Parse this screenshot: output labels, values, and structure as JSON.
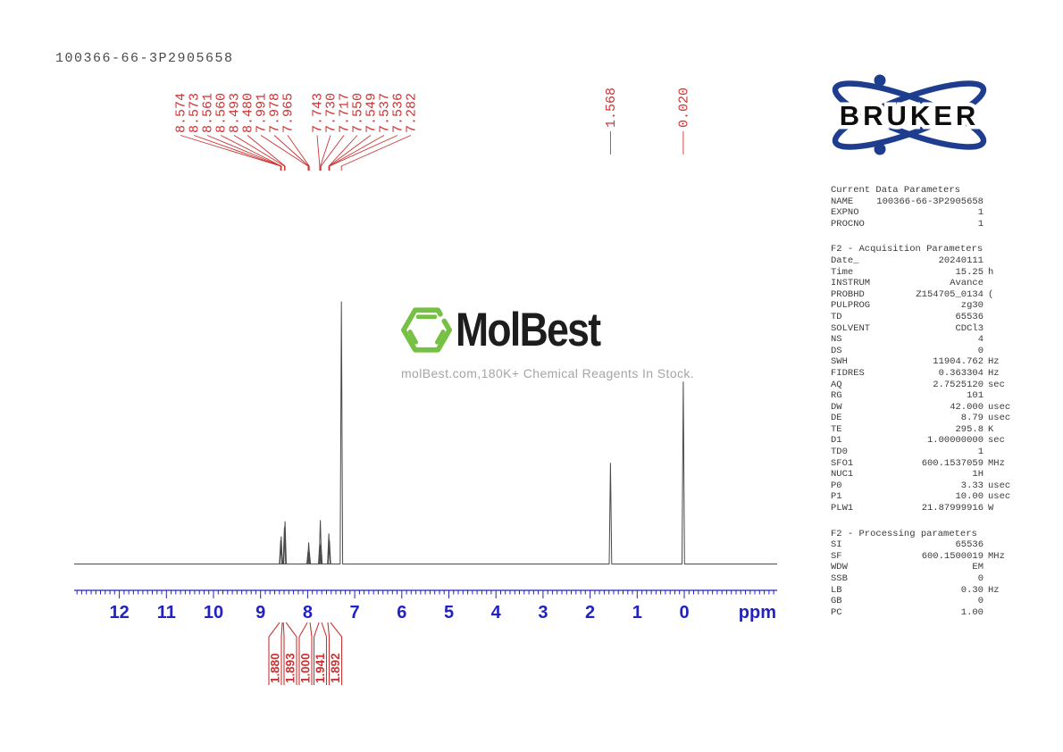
{
  "title": "100366-66-3P2905658",
  "colors": {
    "red": "#cc3434",
    "blue": "#2222c2",
    "navy": "#1e3d8f",
    "green": "#76c043",
    "trace_gray": "#4a4a4a"
  },
  "bruker_logo": {
    "text": "BRUKER"
  },
  "watermark": {
    "name": "MolBest",
    "tagline": "molBest.com,180K+ Chemical Reagents In Stock."
  },
  "chart_data": {
    "type": "line",
    "kind": "1H NMR spectrum",
    "xlabel": "ppm",
    "x_axis_reversed": true,
    "x_range_ppm": [
      12.96,
      -1.95
    ],
    "x_ticks": [
      12,
      11,
      10,
      9,
      8,
      7,
      6,
      5,
      4,
      3,
      2,
      1,
      0
    ],
    "grid": false,
    "peak_labels": [
      "8.574",
      "8.573",
      "8.561",
      "8.560",
      "8.493",
      "8.480",
      "7.991",
      "7.978",
      "7.965",
      "7.743",
      "7.730",
      "7.717",
      "7.550",
      "7.549",
      "7.537",
      "7.536",
      "7.282"
    ],
    "isolated_peak_labels": [
      "1.568",
      "0.020"
    ],
    "peaks": [
      {
        "ppm": 8.574,
        "rel": 0.09
      },
      {
        "ppm": 8.561,
        "rel": 0.105
      },
      {
        "ppm": 8.493,
        "rel": 0.14
      },
      {
        "ppm": 8.48,
        "rel": 0.163
      },
      {
        "ppm": 7.991,
        "rel": 0.05
      },
      {
        "ppm": 7.978,
        "rel": 0.082
      },
      {
        "ppm": 7.965,
        "rel": 0.05
      },
      {
        "ppm": 7.743,
        "rel": 0.08
      },
      {
        "ppm": 7.73,
        "rel": 0.167
      },
      {
        "ppm": 7.717,
        "rel": 0.08
      },
      {
        "ppm": 7.55,
        "rel": 0.116
      },
      {
        "ppm": 7.537,
        "rel": 0.09
      },
      {
        "ppm": 7.282,
        "rel": 1.0
      },
      {
        "ppm": 1.568,
        "rel": 0.385
      },
      {
        "ppm": 0.02,
        "rel": 0.695
      }
    ],
    "integrals": [
      {
        "value": "1.880",
        "ppm": 8.567
      },
      {
        "value": "1.893",
        "ppm": 8.487
      },
      {
        "value": "1.000",
        "ppm": 7.978
      },
      {
        "value": "1.941",
        "ppm": 7.73
      },
      {
        "value": "1.892",
        "ppm": 7.543
      }
    ]
  },
  "parameters": {
    "sections": [
      {
        "heading": "Current Data Parameters",
        "rows": [
          [
            "NAME",
            "100366-66-3P2905658",
            ""
          ],
          [
            "EXPNO",
            "1",
            ""
          ],
          [
            "PROCNO",
            "1",
            ""
          ]
        ]
      },
      {
        "heading": "F2 - Acquisition Parameters",
        "rows": [
          [
            "Date_",
            "20240111",
            ""
          ],
          [
            "Time",
            "15.25",
            "h"
          ],
          [
            "INSTRUM",
            "Avance",
            ""
          ],
          [
            "PROBHD",
            "Z154705_0134",
            "("
          ],
          [
            "PULPROG",
            "zg30",
            ""
          ],
          [
            "TD",
            "65536",
            ""
          ],
          [
            "SOLVENT",
            "CDCl3",
            ""
          ],
          [
            "NS",
            "4",
            ""
          ],
          [
            "DS",
            "0",
            ""
          ],
          [
            "SWH",
            "11904.762",
            "Hz"
          ],
          [
            "FIDRES",
            "0.363304",
            "Hz"
          ],
          [
            "AQ",
            "2.7525120",
            "sec"
          ],
          [
            "RG",
            "101",
            ""
          ],
          [
            "DW",
            "42.000",
            "usec"
          ],
          [
            "DE",
            "8.79",
            "usec"
          ],
          [
            "TE",
            "295.8",
            "K"
          ],
          [
            "D1",
            "1.00000000",
            "sec"
          ],
          [
            "TD0",
            "1",
            ""
          ],
          [
            "SFO1",
            "600.1537059",
            "MHz"
          ],
          [
            "NUC1",
            "1H",
            ""
          ],
          [
            "P0",
            "3.33",
            "usec"
          ],
          [
            "P1",
            "10.00",
            "usec"
          ],
          [
            "PLW1",
            "21.87999916",
            "W"
          ]
        ]
      },
      {
        "heading": "F2 - Processing parameters",
        "rows": [
          [
            "SI",
            "65536",
            ""
          ],
          [
            "SF",
            "600.1500019",
            "MHz"
          ],
          [
            "WDW",
            "EM",
            ""
          ],
          [
            "SSB",
            "0",
            ""
          ],
          [
            "LB",
            "0.30",
            "Hz"
          ],
          [
            "GB",
            "0",
            ""
          ],
          [
            "PC",
            "1.00",
            ""
          ]
        ]
      }
    ]
  }
}
